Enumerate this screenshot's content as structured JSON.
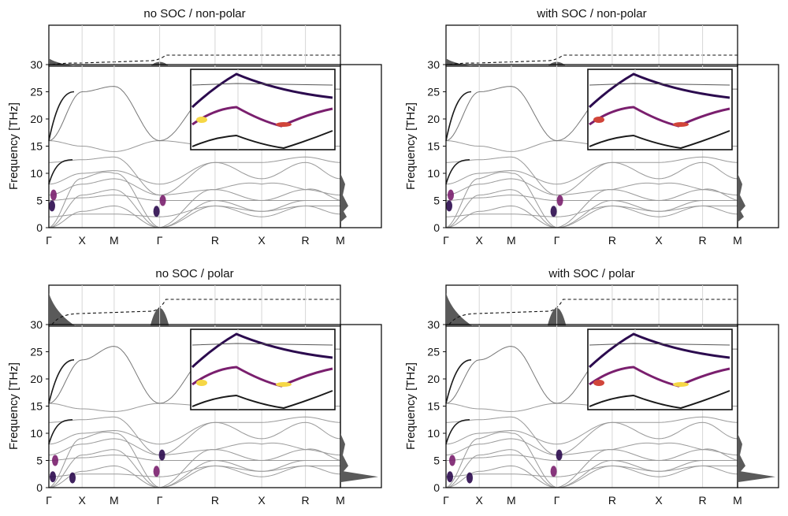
{
  "chart_data": [
    {
      "type": "line",
      "title": "no SOC / non-polar",
      "ylabel": "Frequency [THz]",
      "ylim": [
        0,
        30
      ],
      "yticks": [
        0,
        5,
        10,
        15,
        20,
        25,
        30
      ],
      "kpath": [
        "Γ",
        "X",
        "M",
        "Γ",
        "R",
        "X",
        "R",
        "M"
      ],
      "acoustic_top_THz": 25.0,
      "optical_flat_THz": 16.0,
      "highlight": "dispersion weighted (colormap inferno) near Γ, 2–7 THz",
      "inset": "zoomed band crossings (colored weights)",
      "dos_side_panel": true,
      "top_panel": "phonon DOS with cumulative dashed line"
    },
    {
      "type": "line",
      "title": "with SOC / non-polar",
      "ylabel": "Frequency [THz]",
      "ylim": [
        0,
        30
      ],
      "yticks": [
        0,
        5,
        10,
        15,
        20,
        25,
        30
      ],
      "kpath": [
        "Γ",
        "X",
        "M",
        "Γ",
        "R",
        "X",
        "R",
        "M"
      ],
      "acoustic_top_THz": 25.0,
      "optical_flat_THz": 16.0,
      "highlight": "dispersion weighted (colormap inferno) near Γ, 2–7 THz",
      "inset": "zoomed band crossings (colored weights)",
      "dos_side_panel": true,
      "top_panel": "phonon DOS with cumulative dashed line"
    },
    {
      "type": "line",
      "title": "no SOC / polar",
      "ylabel": "Frequency [THz]",
      "ylim": [
        0,
        30
      ],
      "yticks": [
        0,
        5,
        10,
        15,
        20,
        25,
        30
      ],
      "kpath": [
        "Γ",
        "X",
        "M",
        "Γ",
        "R",
        "X",
        "R",
        "M"
      ],
      "acoustic_top_THz": 23.5,
      "optical_flat_THz": 15.5,
      "highlight": "dispersion weighted (colormap inferno) near Γ, 1–8 THz",
      "inset": "zoomed band crossings (colored weights)",
      "dos_side_panel": true,
      "top_panel": "phonon DOS with cumulative dashed line"
    },
    {
      "type": "line",
      "title": "with SOC / polar",
      "ylabel": "Frequency [THz]",
      "ylim": [
        0,
        30
      ],
      "yticks": [
        0,
        5,
        10,
        15,
        20,
        25,
        30
      ],
      "kpath": [
        "Γ",
        "X",
        "M",
        "Γ",
        "R",
        "X",
        "R",
        "M"
      ],
      "acoustic_top_THz": 23.5,
      "optical_flat_THz": 15.5,
      "highlight": "dispersion weighted (colormap inferno) near Γ, 1–8 THz",
      "inset": "zoomed band crossings (colored weights)",
      "dos_side_panel": true,
      "top_panel": "phonon DOS with cumulative dashed line"
    }
  ],
  "colors": {
    "band_line": "#9a9a9a",
    "band_dark": "#1a1a1a",
    "grid": "#d6d6d6",
    "dos_fill": "#5a5a5a",
    "hot1": "#2b0a4e",
    "hot2": "#7a1f6e",
    "hot3": "#d1453a",
    "hot4": "#f6d746"
  }
}
